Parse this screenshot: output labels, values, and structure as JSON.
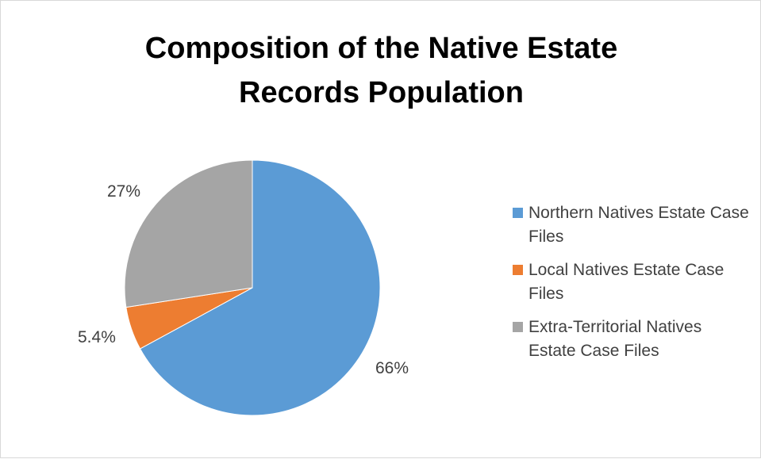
{
  "chart_data": {
    "type": "pie",
    "title": "Composition of the Native Estate Records Population",
    "title_lines": [
      "Composition of the Native Estate",
      "Records Population"
    ],
    "slices": [
      {
        "name": "Northern Natives Estate Case Files",
        "value": 66,
        "label": "66%",
        "color": "#5b9bd5"
      },
      {
        "name": "Local Natives Estate Case Files",
        "value": 5.4,
        "label": "5.4%",
        "color": "#ed7d31"
      },
      {
        "name": "Extra-Territorial Natives Estate Case Files",
        "value": 27,
        "label": "27%",
        "color": "#a5a5a5"
      }
    ],
    "legend_position": "right"
  }
}
